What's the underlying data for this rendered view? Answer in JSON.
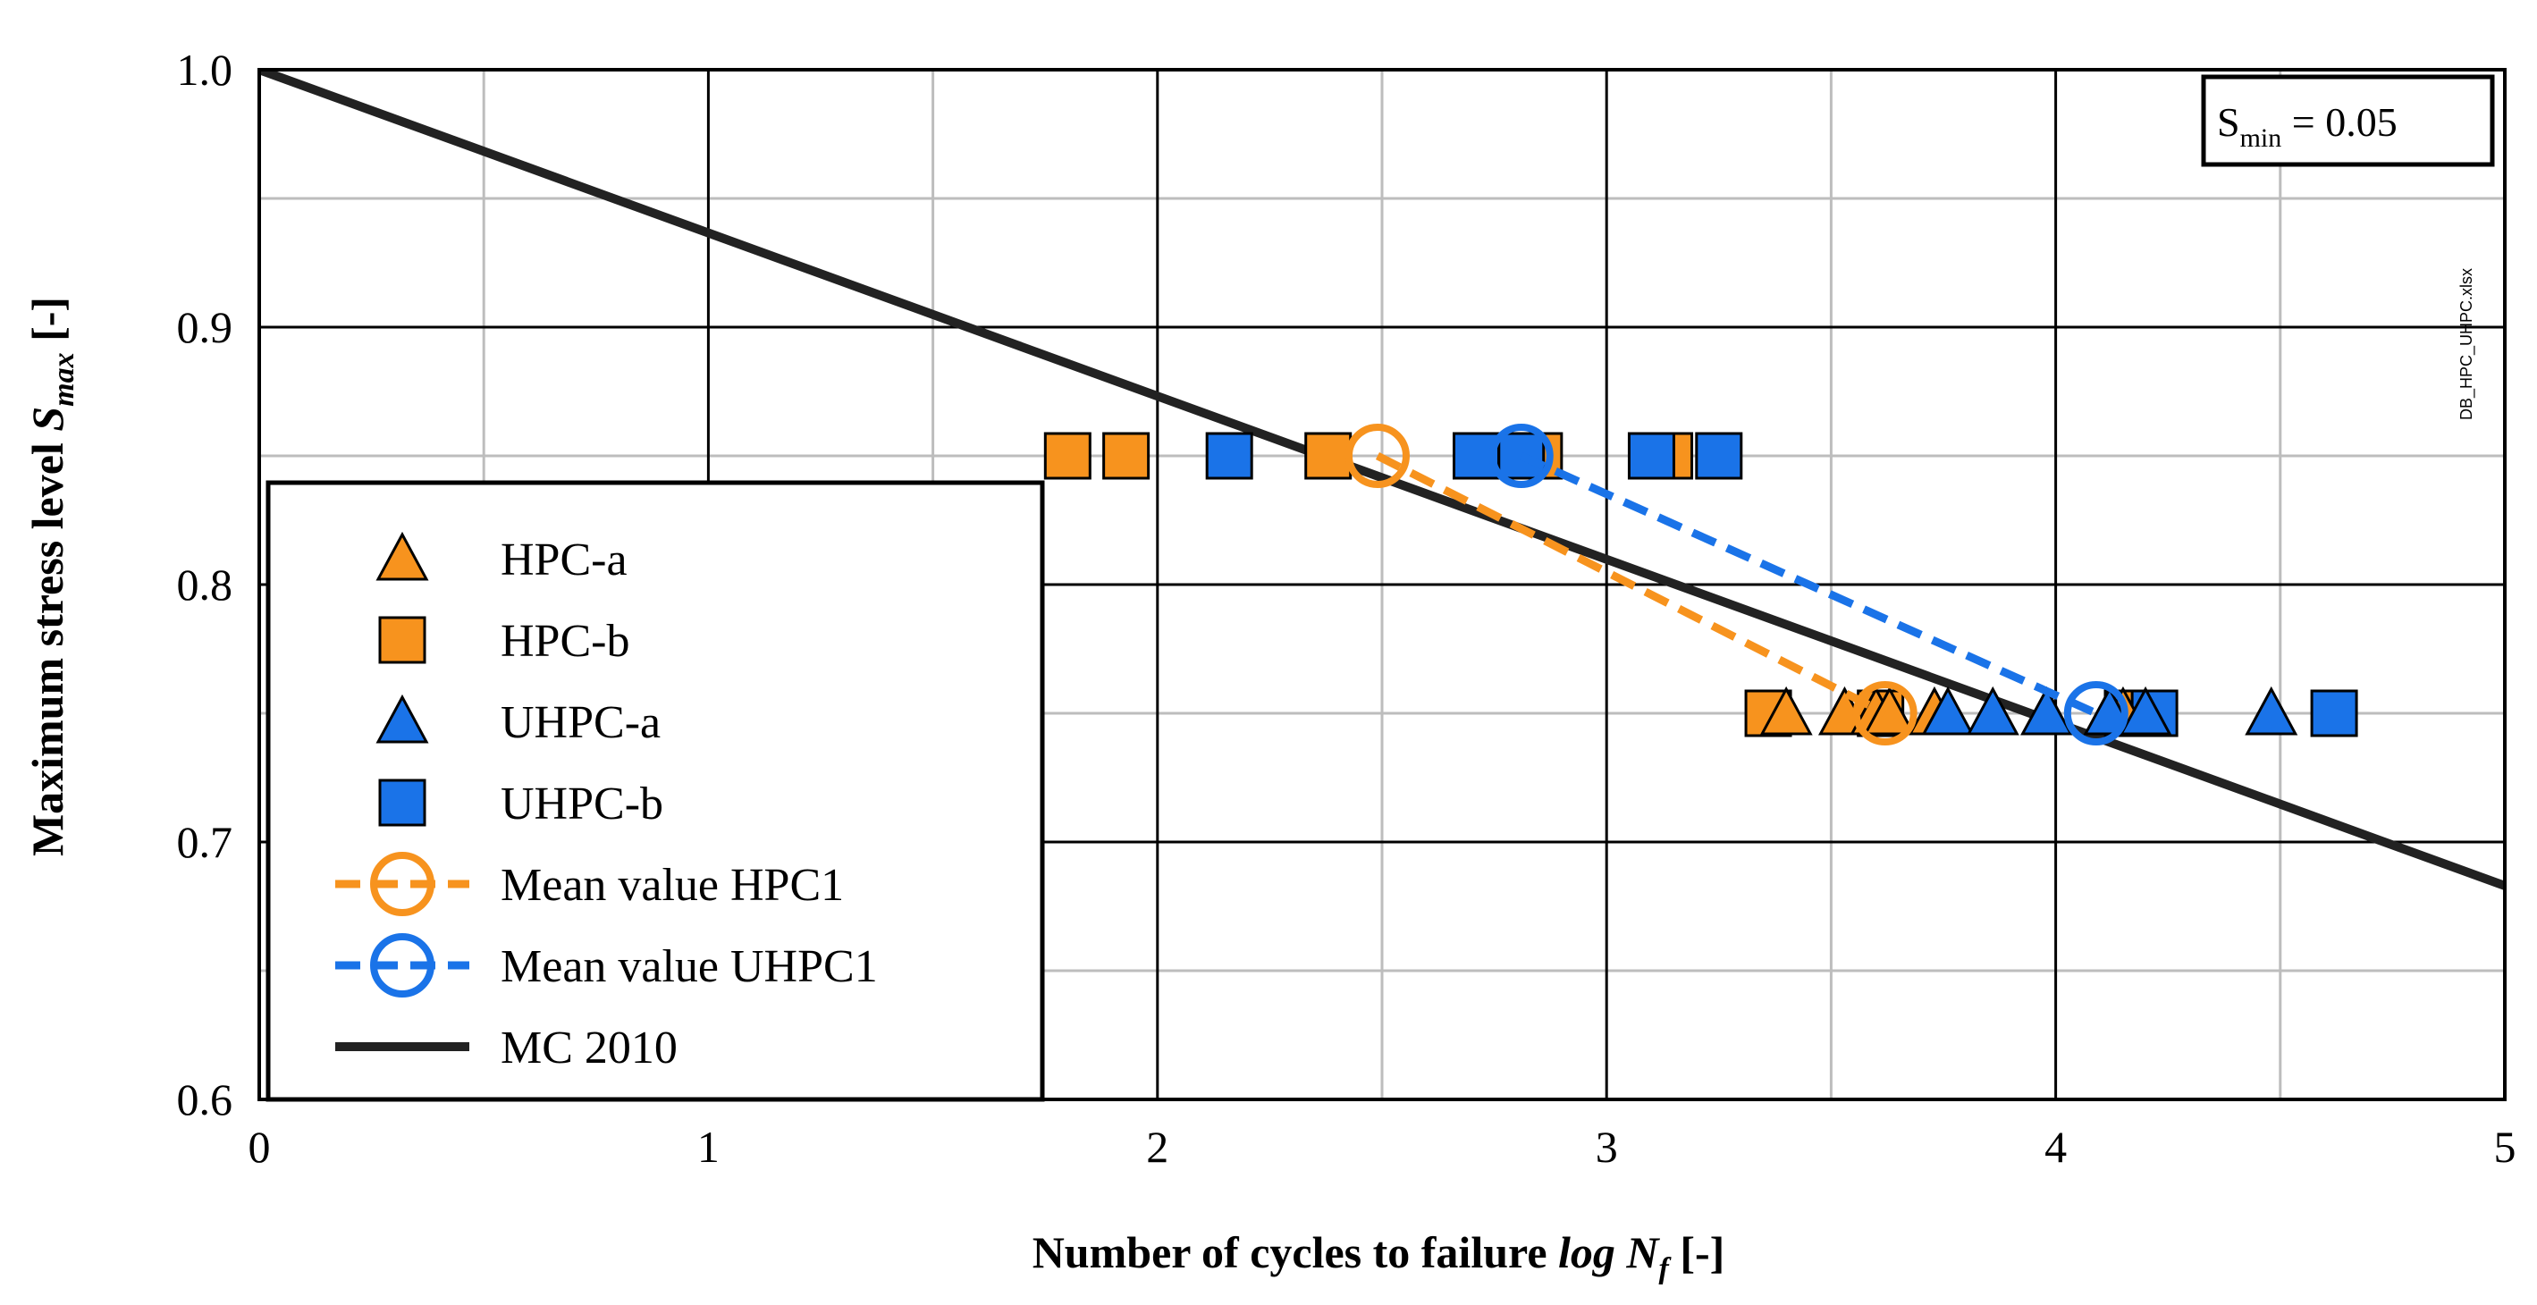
{
  "chart_data": {
    "type": "scatter",
    "title": "",
    "xlabel": "Number of cycles to failure",
    "xlabel_italic": "log N",
    "xlabel_sub": "f",
    "xlabel_unit": "[-]",
    "ylabel": "Maximum stress level",
    "ylabel_italic": "S",
    "ylabel_sub": "max",
    "ylabel_unit": "[-]",
    "xlim": [
      0,
      5
    ],
    "ylim": [
      0.6,
      1.0
    ],
    "x_ticks": [
      0,
      1,
      2,
      3,
      4,
      5
    ],
    "x_tick_labels": [
      "0",
      "1",
      "2",
      "3",
      "4",
      "5"
    ],
    "y_ticks": [
      0.6,
      0.7,
      0.8,
      0.9,
      1.0
    ],
    "y_tick_labels": [
      "0.6",
      "0.7",
      "0.8",
      "0.9",
      "1.0"
    ],
    "grid": true,
    "annotation": {
      "main": "S",
      "sub": "min",
      "rest": " = 0.05"
    },
    "file_label": "DB_HPC_UHPC.xlsx",
    "legend_position": "left",
    "series": [
      {
        "name": "HPC-a",
        "marker": "triangle",
        "color": "#F7931E",
        "points": [
          [
            3.4,
            0.75
          ],
          [
            3.53,
            0.75
          ],
          [
            3.6,
            0.75
          ],
          [
            3.63,
            0.75
          ],
          [
            3.73,
            0.75
          ],
          [
            4.15,
            0.75
          ]
        ]
      },
      {
        "name": "HPC-b",
        "marker": "square",
        "color": "#F7931E",
        "points": [
          [
            1.8,
            0.85
          ],
          [
            1.93,
            0.85
          ],
          [
            2.38,
            0.85
          ],
          [
            2.85,
            0.85
          ],
          [
            3.14,
            0.85
          ],
          [
            3.36,
            0.75
          ],
          [
            3.61,
            0.75
          ],
          [
            4.16,
            0.75
          ]
        ]
      },
      {
        "name": "UHPC-a",
        "marker": "triangle",
        "color": "#1A73E8",
        "points": [
          [
            3.76,
            0.75
          ],
          [
            3.86,
            0.75
          ],
          [
            3.98,
            0.75
          ],
          [
            4.12,
            0.75
          ],
          [
            4.2,
            0.75
          ],
          [
            4.48,
            0.75
          ]
        ]
      },
      {
        "name": "UHPC-b",
        "marker": "square",
        "color": "#1A73E8",
        "points": [
          [
            2.16,
            0.85
          ],
          [
            2.71,
            0.85
          ],
          [
            2.81,
            0.85
          ],
          [
            3.1,
            0.85
          ],
          [
            3.25,
            0.85
          ],
          [
            4.22,
            0.75
          ],
          [
            4.62,
            0.75
          ]
        ]
      },
      {
        "name": "Mean value HPC1",
        "marker": "circle-open",
        "line": "dashed",
        "color": "#F7931E",
        "points": [
          [
            2.49,
            0.85
          ],
          [
            3.62,
            0.75
          ]
        ]
      },
      {
        "name": "Mean value UHPC1",
        "marker": "circle-open",
        "line": "dashed",
        "color": "#1A73E8",
        "points": [
          [
            2.81,
            0.85
          ],
          [
            4.09,
            0.75
          ]
        ]
      },
      {
        "name": "MC 2010",
        "marker": "none",
        "line": "solid",
        "color": "#222222",
        "points": [
          [
            0,
            1.0
          ],
          [
            5,
            0.683
          ]
        ]
      }
    ]
  }
}
